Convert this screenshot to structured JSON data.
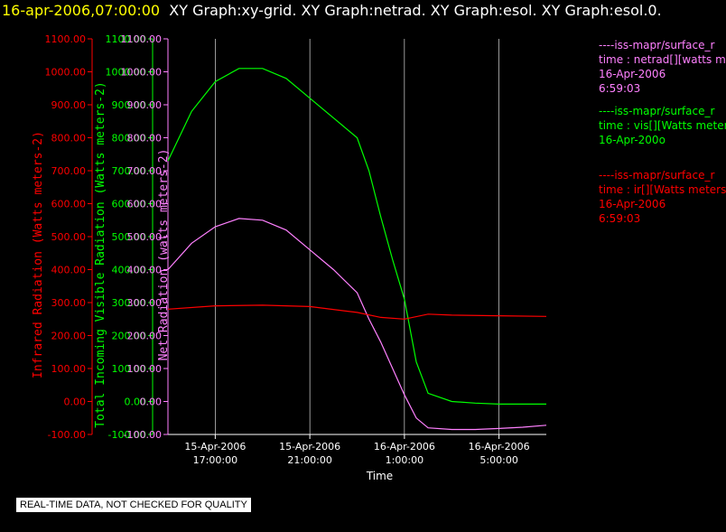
{
  "header": {
    "timestamp": "16-apr-2006,07:00:00",
    "graphs": "XY Graph:xy-grid.  XY Graph:netrad.  XY Graph:esol.  XY Graph:esol.0."
  },
  "legend": [
    {
      "line1": "----iss-mapr/surface_r",
      "line2": "time : netrad[][watts m",
      "line3": "16-Apr-2006",
      "line4": "6:59:03"
    },
    {
      "line1": "----iss-mapr/surface_r",
      "line2": "time : vis[][Watts meter",
      "line3": "16-Apr-200o",
      "line4": ""
    },
    {
      "line1": "----iss-mapr/surface_r",
      "line2": "time : ir[][Watts meters",
      "line3": "16-Apr-2006",
      "line4": "6:59:03"
    }
  ],
  "notice": "REAL-TIME DATA, NOT CHECKED FOR QUALITY",
  "colors": {
    "netrad": "#ff80ff",
    "vis": "#00ff00",
    "ir": "#ff0000",
    "grid": "#ffffff"
  },
  "chart_data": {
    "type": "line",
    "xlabel": "Time",
    "x_ticks": [
      {
        "label1": "15-Apr-2006",
        "label2": "17:00:00",
        "hours": 17
      },
      {
        "label1": "15-Apr-2006",
        "label2": "21:00:00",
        "hours": 21
      },
      {
        "label1": "16-Apr-2006",
        "label2": "1:00:00",
        "hours": 25
      },
      {
        "label1": "16-Apr-2006",
        "label2": "5:00:00",
        "hours": 29
      }
    ],
    "xlim": [
      "15-Apr-2006 15:00",
      "16-Apr-2006 7:00"
    ],
    "axes": [
      {
        "id": "ir",
        "ylabel": "Infrared Radiation (Watts meters-2)",
        "ylim": [
          -100,
          1100
        ]
      },
      {
        "id": "vis",
        "ylabel": "Total Incoming Visible Radiation (Watts meters-2)",
        "ylim": [
          -100,
          1100
        ]
      },
      {
        "id": "netrad",
        "ylabel": "Net Radiation (watts meters-2)",
        "ylim": [
          -100,
          1100
        ]
      }
    ],
    "y_ticks": [
      "1100.00",
      "1000.00",
      "900.00",
      "800.00",
      "700.00",
      "600.00",
      "500.00",
      "400.00",
      "300.00",
      "200.00",
      "100.00",
      "0.00",
      "-100.00"
    ],
    "series": [
      {
        "id": "vis",
        "x": [
          "15-Apr-2006 15:00",
          "15-Apr-2006 16:00",
          "15-Apr-2006 17:00",
          "15-Apr-2006 18:00",
          "15-Apr-2006 19:00",
          "15-Apr-2006 20:00",
          "15-Apr-2006 21:00",
          "15-Apr-2006 22:00",
          "15-Apr-2006 23:00",
          "15-Apr-2006 23:30",
          "16-Apr-2006 0:00",
          "16-Apr-2006 0:30",
          "16-Apr-2006 1:00",
          "16-Apr-2006 1:30",
          "16-Apr-2006 2:00",
          "16-Apr-2006 3:00",
          "16-Apr-2006 4:00",
          "16-Apr-2006 5:00",
          "16-Apr-2006 6:00",
          "16-Apr-2006 7:00"
        ],
        "y": [
          730,
          880,
          970,
          1010,
          1010,
          980,
          920,
          860,
          800,
          700,
          560,
          430,
          310,
          120,
          25,
          0,
          -5,
          -8,
          -8,
          -8
        ]
      },
      {
        "id": "netrad",
        "x": [
          "15-Apr-2006 15:00",
          "15-Apr-2006 16:00",
          "15-Apr-2006 17:00",
          "15-Apr-2006 18:00",
          "15-Apr-2006 19:00",
          "15-Apr-2006 20:00",
          "15-Apr-2006 21:00",
          "15-Apr-2006 22:00",
          "15-Apr-2006 23:00",
          "15-Apr-2006 23:30",
          "16-Apr-2006 0:00",
          "16-Apr-2006 0:30",
          "16-Apr-2006 1:00",
          "16-Apr-2006 1:30",
          "16-Apr-2006 2:00",
          "16-Apr-2006 3:00",
          "16-Apr-2006 4:00",
          "16-Apr-2006 5:00",
          "16-Apr-2006 6:00",
          "16-Apr-2006 7:00"
        ],
        "y": [
          400,
          480,
          530,
          555,
          550,
          520,
          460,
          400,
          330,
          250,
          180,
          100,
          20,
          -50,
          -80,
          -85,
          -85,
          -82,
          -78,
          -72
        ]
      },
      {
        "id": "ir",
        "x": [
          "15-Apr-2006 15:00",
          "15-Apr-2006 17:00",
          "15-Apr-2006 19:00",
          "15-Apr-2006 21:00",
          "15-Apr-2006 23:00",
          "16-Apr-2006 0:00",
          "16-Apr-2006 1:00",
          "16-Apr-2006 2:00",
          "16-Apr-2006 3:00",
          "16-Apr-2006 5:00",
          "16-Apr-2006 7:00"
        ],
        "y": [
          280,
          290,
          292,
          288,
          270,
          255,
          250,
          265,
          262,
          260,
          258
        ]
      }
    ]
  }
}
